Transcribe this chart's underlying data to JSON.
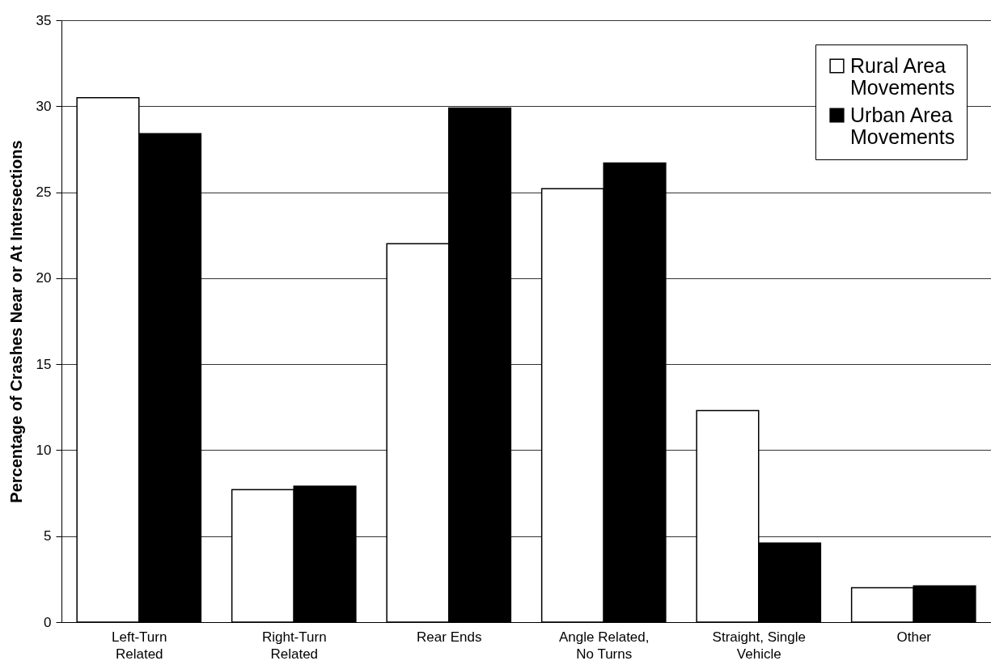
{
  "chart_data": {
    "type": "bar",
    "ylabel": "Percentage of Crashes Near or At Intersections",
    "categories": [
      "Left-Turn Related",
      "Right-Turn Related",
      "Rear Ends",
      "Angle Related, No Turns",
      "Straight, Single Vehicle",
      "Other"
    ],
    "series": [
      {
        "name": "Rural Area Movements",
        "color": "#ffffff",
        "values": [
          30.5,
          7.7,
          22.0,
          25.2,
          12.3,
          2.0
        ]
      },
      {
        "name": "Urban Area Movements",
        "color": "#000000",
        "values": [
          28.4,
          7.9,
          29.9,
          26.7,
          4.6,
          2.1
        ]
      }
    ],
    "ylim": [
      0,
      35
    ],
    "yticks": [
      0,
      5,
      10,
      15,
      20,
      25,
      30,
      35
    ],
    "grid": "y",
    "legend": "top right"
  }
}
